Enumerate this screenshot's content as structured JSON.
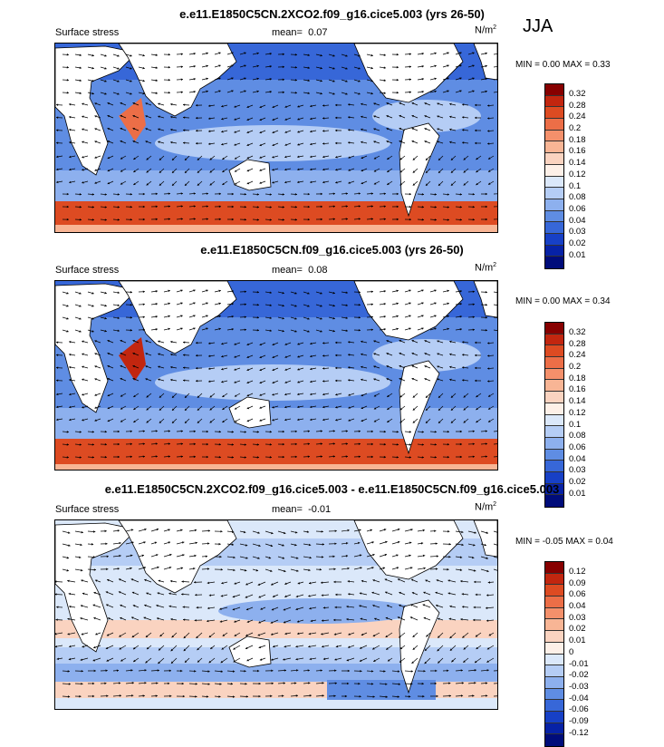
{
  "season": "JJA",
  "panels": [
    {
      "title": "e.e11.E1850C5CN.2XCO2.f09_g16.cice5.003 (yrs 26-50)",
      "variable": "Surface stress",
      "mean_label": "mean=",
      "mean": "0.07",
      "units": "N/m",
      "units_sup": "2",
      "min_label": "MIN =",
      "min": "0.00",
      "max_label": "MAX =",
      "max": "0.33",
      "colorbar_labels": [
        "0.32",
        "0.28",
        "0.24",
        "0.2",
        "0.18",
        "0.16",
        "0.14",
        "0.12",
        "0.1",
        "0.08",
        "0.06",
        "0.04",
        "0.03",
        "0.02",
        "0.01"
      ],
      "colorbar_colors": [
        "#870000",
        "#c2260f",
        "#dd4b22",
        "#ec6e47",
        "#f4906b",
        "#f8b595",
        "#fad3c0",
        "#fdf0e8",
        "#dbe8fa",
        "#b5cdf5",
        "#8db0ee",
        "#5f8de3",
        "#3767d8",
        "#1740c6",
        "#0722a6",
        "#000c7a"
      ]
    },
    {
      "title": "e.e11.E1850C5CN.f09_g16.cice5.003 (yrs 26-50)",
      "variable": "Surface stress",
      "mean_label": "mean=",
      "mean": "0.08",
      "units": "N/m",
      "units_sup": "2",
      "min_label": "MIN =",
      "min": "0.00",
      "max_label": "MAX =",
      "max": "0.34",
      "colorbar_labels": [
        "0.32",
        "0.28",
        "0.24",
        "0.2",
        "0.18",
        "0.16",
        "0.14",
        "0.12",
        "0.1",
        "0.08",
        "0.06",
        "0.04",
        "0.03",
        "0.02",
        "0.01"
      ],
      "colorbar_colors": [
        "#870000",
        "#c2260f",
        "#dd4b22",
        "#ec6e47",
        "#f4906b",
        "#f8b595",
        "#fad3c0",
        "#fdf0e8",
        "#dbe8fa",
        "#b5cdf5",
        "#8db0ee",
        "#5f8de3",
        "#3767d8",
        "#1740c6",
        "#0722a6",
        "#000c7a"
      ]
    },
    {
      "title": "e.e11.E1850C5CN.2XCO2.f09_g16.cice5.003 - e.e11.E1850C5CN.f09_g16.cice5.003",
      "variable": "Surface stress",
      "mean_label": "mean=",
      "mean": "-0.01",
      "units": "N/m",
      "units_sup": "2",
      "min_label": "MIN =",
      "min": "-0.05",
      "max_label": "MAX =",
      "max": "0.04",
      "colorbar_labels": [
        "0.12",
        "0.09",
        "0.06",
        "0.04",
        "0.03",
        "0.02",
        "0.01",
        "0",
        "-0.01",
        "-0.02",
        "-0.03",
        "-0.04",
        "-0.06",
        "-0.09",
        "-0.12"
      ],
      "colorbar_colors": [
        "#870000",
        "#c2260f",
        "#dd4b22",
        "#ec6e47",
        "#f4906b",
        "#f8b595",
        "#fad3c0",
        "#fdf0e8",
        "#dbe8fa",
        "#b5cdf5",
        "#8db0ee",
        "#5f8de3",
        "#3767d8",
        "#1740c6",
        "#0722a6",
        "#000c7a"
      ]
    }
  ]
}
